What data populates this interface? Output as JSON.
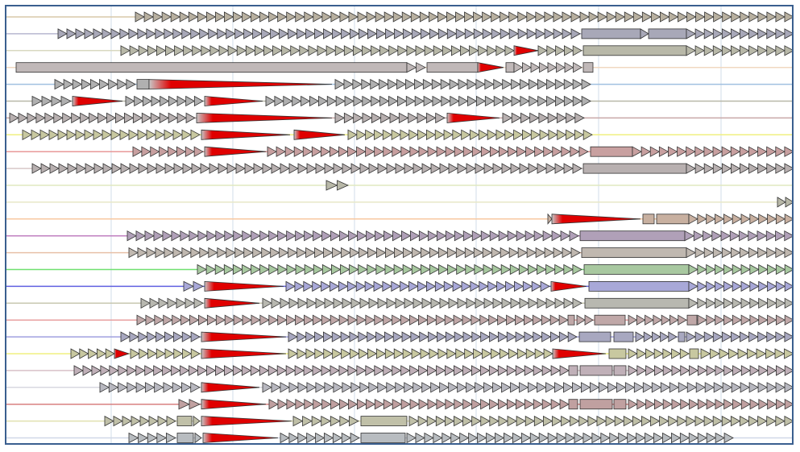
{
  "viewer": {
    "grid_color": "#d0dce8"
  },
  "palette": {
    "gene_default": "#b8b8b8",
    "stroke": "#333333",
    "highlight": "#e00000"
  },
  "tracks": [
    {
      "line": "#d8c8a8",
      "fill": "#b8b0a0",
      "segments": [
        {
          "t": "arrows",
          "from": 168,
          "to": 985
        }
      ]
    },
    {
      "line": "#b8b8d0",
      "fill": "#a8a8b8",
      "segments": [
        {
          "t": "arrows",
          "from": 72,
          "to": 720
        },
        {
          "t": "box",
          "from": 722,
          "to": 795
        },
        {
          "t": "arrows",
          "from": 795,
          "to": 805
        },
        {
          "t": "box",
          "from": 805,
          "to": 852
        },
        {
          "t": "arrows",
          "from": 852,
          "to": 985
        }
      ]
    },
    {
      "line": "#d8d8c0",
      "fill": "#b8b8a8",
      "segments": [
        {
          "t": "arrows",
          "from": 150,
          "to": 638
        },
        {
          "t": "red",
          "from": 638,
          "to": 668
        },
        {
          "t": "arrows",
          "from": 668,
          "to": 722
        },
        {
          "t": "box",
          "from": 724,
          "to": 852
        },
        {
          "t": "arrows",
          "from": 852,
          "to": 985
        }
      ]
    },
    {
      "line": "#f0d8c0",
      "fill": "#c0b8b8",
      "segments": [
        {
          "t": "box",
          "from": 20,
          "to": 505
        },
        {
          "t": "arrows",
          "from": 505,
          "to": 528
        },
        {
          "t": "box",
          "from": 530,
          "to": 593
        },
        {
          "t": "red",
          "from": 593,
          "to": 625
        },
        {
          "t": "box",
          "from": 628,
          "to": 638
        },
        {
          "t": "arrows",
          "from": 638,
          "to": 722
        },
        {
          "t": "box",
          "from": 724,
          "to": 736
        }
      ]
    },
    {
      "line": "#a0c0e0",
      "fill": "#b0b0b0",
      "segments": [
        {
          "t": "arrows",
          "from": 68,
          "to": 168
        },
        {
          "t": "box",
          "from": 170,
          "to": 185
        },
        {
          "t": "red",
          "from": 185,
          "to": 412
        },
        {
          "t": "arrows",
          "from": 416,
          "to": 733
        }
      ]
    },
    {
      "line": "#b8b8a8",
      "fill": "#b0b0b0",
      "segments": [
        {
          "t": "arrows",
          "from": 40,
          "to": 88
        },
        {
          "t": "red",
          "from": 90,
          "to": 152
        },
        {
          "t": "arrows",
          "from": 156,
          "to": 252
        },
        {
          "t": "red",
          "from": 254,
          "to": 326
        },
        {
          "t": "arrows",
          "from": 330,
          "to": 733
        }
      ]
    },
    {
      "line": "#c8a8a8",
      "fill": "#b8b0b0",
      "segments": [
        {
          "t": "arrows",
          "from": 12,
          "to": 242
        },
        {
          "t": "red",
          "from": 244,
          "to": 412
        },
        {
          "t": "arrows",
          "from": 416,
          "to": 552
        },
        {
          "t": "red",
          "from": 555,
          "to": 620
        },
        {
          "t": "arrows",
          "from": 624,
          "to": 725
        }
      ]
    },
    {
      "line": "#f0f080",
      "fill": "#c8c8a0",
      "segments": [
        {
          "t": "arrows",
          "from": 28,
          "to": 248
        },
        {
          "t": "red",
          "from": 250,
          "to": 360
        },
        {
          "t": "red",
          "from": 365,
          "to": 428
        },
        {
          "t": "arrows",
          "from": 432,
          "to": 735
        }
      ]
    },
    {
      "line": "#e89898",
      "fill": "#c8a0a0",
      "segments": [
        {
          "t": "arrows",
          "from": 165,
          "to": 252
        },
        {
          "t": "red",
          "from": 254,
          "to": 330
        },
        {
          "t": "arrows",
          "from": 332,
          "to": 730
        },
        {
          "t": "box",
          "from": 733,
          "to": 785
        },
        {
          "t": "arrows",
          "from": 785,
          "to": 985
        }
      ]
    },
    {
      "line": "#d8c8c8",
      "fill": "#b8b0b0",
      "segments": [
        {
          "t": "arrows",
          "from": 40,
          "to": 722
        },
        {
          "t": "box",
          "from": 724,
          "to": 852
        },
        {
          "t": "arrows",
          "from": 852,
          "to": 985
        }
      ]
    },
    {
      "line": "#e0e8c0",
      "fill": "#b8b8a8",
      "segments": [
        {
          "t": "arrows",
          "from": 405,
          "to": 432
        }
      ]
    },
    {
      "line": "#e8e8c8",
      "fill": "#b8b8a8",
      "segments": [
        {
          "t": "arrows",
          "from": 965,
          "to": 985
        }
      ]
    },
    {
      "line": "#f8c8a0",
      "fill": "#c8b0a0",
      "segments": [
        {
          "t": "arrows",
          "from": 680,
          "to": 685
        },
        {
          "t": "red",
          "from": 685,
          "to": 795
        },
        {
          "t": "box",
          "from": 798,
          "to": 812
        },
        {
          "t": "box",
          "from": 815,
          "to": 855
        },
        {
          "t": "arrows",
          "from": 855,
          "to": 985
        }
      ]
    },
    {
      "line": "#c080c0",
      "fill": "#b0a0b8",
      "segments": [
        {
          "t": "arrows",
          "from": 158,
          "to": 718
        },
        {
          "t": "box",
          "from": 720,
          "to": 850
        },
        {
          "t": "arrows",
          "from": 850,
          "to": 985
        }
      ]
    },
    {
      "line": "#e8c0a8",
      "fill": "#c0b8b0",
      "segments": [
        {
          "t": "arrows",
          "from": 160,
          "to": 720
        },
        {
          "t": "box",
          "from": 722,
          "to": 852
        },
        {
          "t": "arrows",
          "from": 852,
          "to": 985
        }
      ]
    },
    {
      "line": "#70e070",
      "fill": "#a8c8a0",
      "segments": [
        {
          "t": "arrows",
          "from": 245,
          "to": 722
        },
        {
          "t": "box",
          "from": 725,
          "to": 855
        },
        {
          "t": "arrows",
          "from": 855,
          "to": 985
        }
      ]
    },
    {
      "line": "#6060e0",
      "fill": "#a8a8d8",
      "segments": [
        {
          "t": "arrows",
          "from": 228,
          "to": 252
        },
        {
          "t": "red",
          "from": 254,
          "to": 352
        },
        {
          "t": "arrows",
          "from": 355,
          "to": 682
        },
        {
          "t": "red",
          "from": 684,
          "to": 728
        },
        {
          "t": "box",
          "from": 731,
          "to": 855
        },
        {
          "t": "arrows",
          "from": 855,
          "to": 985
        }
      ]
    },
    {
      "line": "#c8c8b0",
      "fill": "#b8b8b0",
      "segments": [
        {
          "t": "arrows",
          "from": 175,
          "to": 252
        },
        {
          "t": "red",
          "from": 254,
          "to": 322
        },
        {
          "t": "arrows",
          "from": 326,
          "to": 722
        },
        {
          "t": "box",
          "from": 726,
          "to": 855
        },
        {
          "t": "arrows",
          "from": 855,
          "to": 985
        }
      ]
    },
    {
      "line": "#e8a0a0",
      "fill": "#c0a8a8",
      "segments": [
        {
          "t": "arrows",
          "from": 170,
          "to": 705
        },
        {
          "t": "box",
          "from": 705,
          "to": 713
        },
        {
          "t": "arrows",
          "from": 716,
          "to": 736
        },
        {
          "t": "box",
          "from": 738,
          "to": 776
        },
        {
          "t": "arrows",
          "from": 780,
          "to": 852
        },
        {
          "t": "box",
          "from": 853,
          "to": 865
        },
        {
          "t": "arrows",
          "from": 866,
          "to": 985
        }
      ]
    },
    {
      "line": "#a0a0e0",
      "fill": "#a8a8c0",
      "segments": [
        {
          "t": "arrows",
          "from": 150,
          "to": 248
        },
        {
          "t": "red",
          "from": 250,
          "to": 355
        },
        {
          "t": "arrows",
          "from": 358,
          "to": 716
        },
        {
          "t": "box",
          "from": 719,
          "to": 758
        },
        {
          "t": "box",
          "from": 762,
          "to": 786
        },
        {
          "t": "arrows",
          "from": 789,
          "to": 840
        },
        {
          "t": "box",
          "from": 842,
          "to": 850
        },
        {
          "t": "arrows",
          "from": 852,
          "to": 985
        }
      ]
    },
    {
      "line": "#f0f080",
      "fill": "#c8c8a0",
      "segments": [
        {
          "t": "arrows",
          "from": 88,
          "to": 142
        },
        {
          "t": "red",
          "from": 142,
          "to": 160
        },
        {
          "t": "arrows",
          "from": 162,
          "to": 248
        },
        {
          "t": "red",
          "from": 250,
          "to": 355
        },
        {
          "t": "arrows",
          "from": 358,
          "to": 686
        },
        {
          "t": "red",
          "from": 686,
          "to": 752
        },
        {
          "t": "box",
          "from": 756,
          "to": 777
        },
        {
          "t": "arrows",
          "from": 780,
          "to": 855
        },
        {
          "t": "box",
          "from": 856,
          "to": 867
        },
        {
          "t": "arrows",
          "from": 870,
          "to": 985
        }
      ]
    },
    {
      "line": "#d8c0c8",
      "fill": "#c0b0b8",
      "segments": [
        {
          "t": "arrows",
          "from": 92,
          "to": 706
        },
        {
          "t": "box",
          "from": 706,
          "to": 717
        },
        {
          "t": "box",
          "from": 720,
          "to": 760
        },
        {
          "t": "box",
          "from": 762,
          "to": 777
        },
        {
          "t": "arrows",
          "from": 780,
          "to": 985
        }
      ]
    },
    {
      "line": "#d8d8e0",
      "fill": "#b8b8c0",
      "segments": [
        {
          "t": "arrows",
          "from": 124,
          "to": 248
        },
        {
          "t": "red",
          "from": 250,
          "to": 322
        },
        {
          "t": "arrows",
          "from": 326,
          "to": 985
        }
      ]
    },
    {
      "line": "#d88080",
      "fill": "#c0a0a0",
      "segments": [
        {
          "t": "arrows",
          "from": 222,
          "to": 248
        },
        {
          "t": "red",
          "from": 250,
          "to": 330
        },
        {
          "t": "arrows",
          "from": 334,
          "to": 706
        },
        {
          "t": "box",
          "from": 706,
          "to": 717
        },
        {
          "t": "box",
          "from": 720,
          "to": 760
        },
        {
          "t": "box",
          "from": 762,
          "to": 777
        },
        {
          "t": "arrows",
          "from": 780,
          "to": 985
        }
      ]
    },
    {
      "line": "#e0e0b0",
      "fill": "#c0c0a8",
      "segments": [
        {
          "t": "arrows",
          "from": 130,
          "to": 218
        },
        {
          "t": "box",
          "from": 220,
          "to": 238
        },
        {
          "t": "arrows",
          "from": 240,
          "to": 248
        },
        {
          "t": "red",
          "from": 250,
          "to": 362
        },
        {
          "t": "arrows",
          "from": 364,
          "to": 445
        },
        {
          "t": "box",
          "from": 448,
          "to": 505
        },
        {
          "t": "arrows",
          "from": 508,
          "to": 985
        }
      ]
    },
    {
      "line": "#d0d8e8",
      "fill": "#b8bcc0",
      "segments": [
        {
          "t": "arrows",
          "from": 160,
          "to": 218
        },
        {
          "t": "box",
          "from": 220,
          "to": 240
        },
        {
          "t": "arrows",
          "from": 242,
          "to": 250
        },
        {
          "t": "red",
          "from": 252,
          "to": 345
        },
        {
          "t": "arrows",
          "from": 348,
          "to": 446
        },
        {
          "t": "box",
          "from": 448,
          "to": 503
        },
        {
          "t": "arrows",
          "from": 505,
          "to": 910
        }
      ]
    }
  ]
}
